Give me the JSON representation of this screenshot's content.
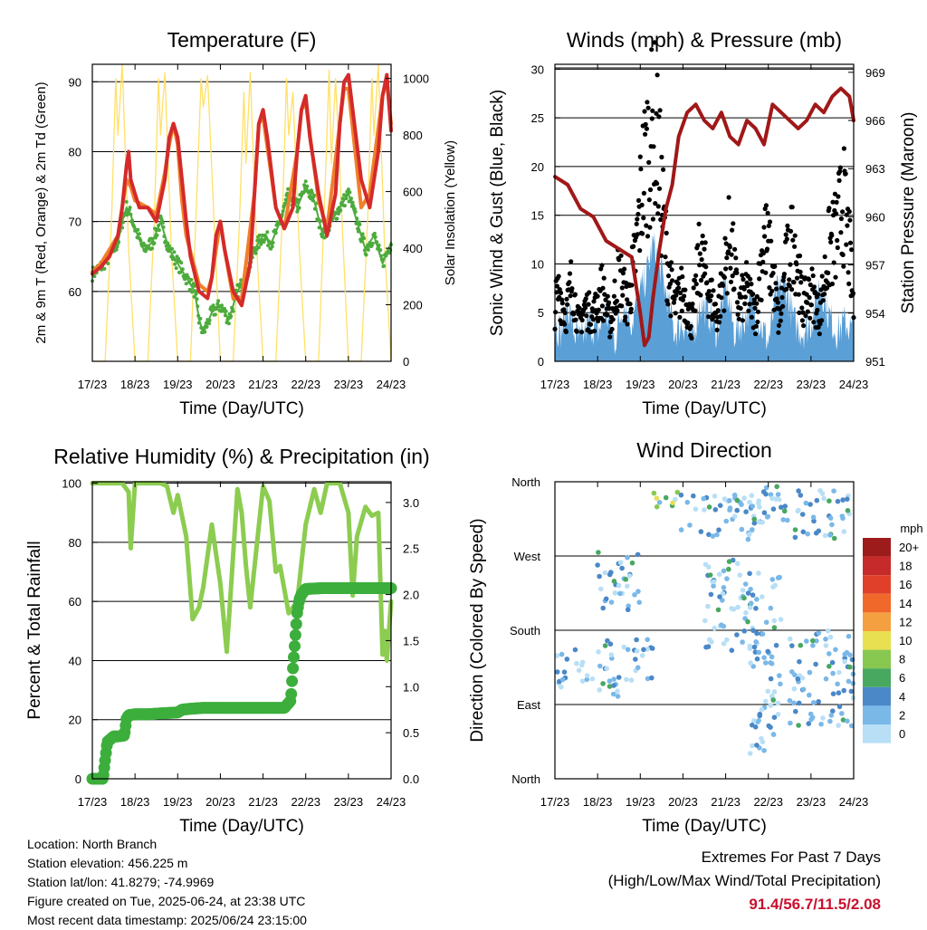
{
  "chart_data": [
    {
      "type": "line",
      "title": "Temperature (F)",
      "xlabel": "Time (Day/UTC)",
      "ylabel": "2m & 9m T (Red, Orange) & 2m Td (Green)",
      "ylabel_right": "Solar Insolation (Yellow)",
      "x_ticks": [
        "17/23",
        "18/23",
        "19/23",
        "20/23",
        "21/23",
        "22/23",
        "23/23",
        "24/23"
      ],
      "y_ticks": [
        "60",
        "70",
        "80",
        "90"
      ],
      "y_ticks_right": [
        "0",
        "200",
        "400",
        "600",
        "800",
        "1000"
      ],
      "ylim": [
        50,
        92.5
      ],
      "ylim_right": [
        0,
        1050
      ],
      "colors": {
        "temp2m": "#d42a2a",
        "temp9m": "#f0802a",
        "dewpoint": "#4cab3c",
        "solar": "#ffe066"
      },
      "series": [
        {
          "x": [
            0,
            0.2,
            0.4,
            0.6,
            0.7,
            0.8,
            0.85,
            0.9,
            1.0,
            1.1,
            1.3,
            1.5,
            1.7,
            1.8,
            1.9,
            2.0,
            2.1,
            2.2,
            2.3,
            2.5,
            2.7,
            2.8,
            2.9,
            3.0,
            3.1,
            3.3,
            3.5,
            3.7,
            3.8,
            3.9,
            4.0,
            4.1,
            4.3,
            4.5,
            4.7,
            4.8,
            4.9,
            5.0,
            5.1,
            5.3,
            5.5,
            5.7,
            5.8,
            5.9,
            6.0,
            6.1,
            6.3,
            6.5,
            6.7,
            6.8,
            6.9,
            7.0
          ],
          "values": [
            62.5,
            63.5,
            65,
            68,
            72,
            78,
            80,
            76,
            74,
            72,
            72,
            70,
            76,
            82,
            84,
            82,
            76,
            70,
            65,
            60,
            59,
            62,
            68,
            70,
            66,
            60,
            58,
            64,
            74,
            84,
            86,
            82,
            72,
            69,
            72,
            80,
            86,
            88,
            82,
            74,
            68,
            74,
            84,
            90,
            91,
            86,
            76,
            72,
            80,
            88,
            91,
            83
          ]
        },
        {
          "x": [
            0,
            0.2,
            0.4,
            0.6,
            0.7,
            0.8,
            0.9,
            1.0,
            1.3,
            1.5,
            1.7,
            1.8,
            1.9,
            2.0,
            2.1,
            2.2,
            2.5,
            2.7,
            2.8,
            3.0,
            3.1,
            3.3,
            3.5,
            3.8,
            3.9,
            4.0,
            4.3,
            4.5,
            4.8,
            4.9,
            5.0,
            5.3,
            5.5,
            5.8,
            5.9,
            6.0,
            6.3,
            6.5,
            6.8,
            6.9,
            7.0
          ],
          "values": [
            62.8,
            64,
            66,
            68,
            72,
            76,
            75,
            73,
            72,
            71,
            77,
            81,
            84,
            81,
            73,
            68,
            61,
            60,
            62,
            70,
            66,
            59,
            59,
            74,
            84,
            85,
            72,
            69,
            80,
            86,
            87,
            73,
            69,
            84,
            89,
            89,
            72,
            74,
            88,
            90,
            84
          ]
        },
        {
          "x": [
            0,
            0.2,
            0.4,
            0.6,
            0.7,
            0.8,
            0.9,
            1.0,
            1.2,
            1.4,
            1.6,
            1.8,
            2.0,
            2.2,
            2.4,
            2.5,
            2.6,
            2.8,
            3.0,
            3.2,
            3.4,
            3.6,
            3.8,
            4.0,
            4.2,
            4.4,
            4.6,
            4.8,
            5.0,
            5.2,
            5.4,
            5.6,
            5.8,
            6.0,
            6.2,
            6.4,
            6.6,
            6.8,
            7.0
          ],
          "values": [
            62.5,
            63.5,
            65,
            67,
            70,
            72,
            71,
            69,
            66,
            67,
            70,
            66,
            64,
            62,
            60,
            56,
            54,
            57,
            58,
            56,
            60,
            62,
            66,
            68,
            67,
            70,
            74,
            72,
            75,
            73,
            68,
            70,
            72,
            74,
            70,
            66,
            68,
            64,
            67
          ]
        },
        {
          "x": [
            0,
            0.3,
            0.45,
            0.55,
            0.6,
            0.7,
            0.85,
            1.0,
            1.3,
            1.45,
            1.55,
            1.6,
            1.7,
            1.85,
            2.0,
            2.3,
            2.45,
            2.55,
            2.6,
            2.7,
            2.85,
            3.0,
            3.3,
            3.45,
            3.55,
            3.6,
            3.7,
            3.85,
            4.0,
            4.3,
            4.45,
            4.55,
            4.6,
            4.7,
            4.85,
            5.0,
            5.3,
            5.45,
            5.55,
            5.6,
            5.7,
            5.85,
            6.0,
            6.3,
            6.45,
            6.55,
            6.6,
            6.7,
            6.85,
            7.0
          ],
          "values": [
            0,
            0,
            500,
            1000,
            800,
            1050,
            400,
            0,
            0,
            500,
            1000,
            800,
            1020,
            400,
            0,
            0,
            600,
            1000,
            900,
            1010,
            500,
            0,
            0,
            500,
            950,
            700,
            1020,
            400,
            0,
            0,
            500,
            1000,
            800,
            950,
            400,
            0,
            0,
            600,
            1030,
            700,
            1000,
            500,
            0,
            0,
            500,
            1000,
            800,
            1050,
            400,
            0
          ]
        }
      ]
    },
    {
      "type": "line",
      "title": "Winds (mph) & Pressure (mb)",
      "xlabel": "Time (Day/UTC)",
      "ylabel": "Sonic Wind & Gust (Blue, Black)",
      "ylabel_right": "Station Pressure (Maroon)",
      "x_ticks": [
        "17/23",
        "18/23",
        "19/23",
        "20/23",
        "21/23",
        "22/23",
        "23/23",
        "24/23"
      ],
      "y_ticks": [
        "0",
        "5",
        "10",
        "15",
        "20",
        "25",
        "30"
      ],
      "y_ticks_right": [
        "951",
        "954",
        "957",
        "960",
        "963",
        "966",
        "969"
      ],
      "ylim": [
        0,
        30.5
      ],
      "ylim_right": [
        951,
        969.5
      ],
      "colors": {
        "wind": "#5a9fd6",
        "gust": "#000000",
        "pressure": "#a01818"
      },
      "series": [
        {
          "x": [
            0,
            0.15,
            0.3,
            0.45,
            0.6,
            0.8,
            1.0,
            1.2,
            1.4,
            1.6,
            1.8,
            2.0,
            2.15,
            2.3,
            2.45,
            2.6,
            2.8,
            3.0,
            3.2,
            3.4,
            3.6,
            3.8,
            4.0,
            4.2,
            4.4,
            4.6,
            4.8,
            5.0,
            5.2,
            5.4,
            5.6,
            5.8,
            6.0,
            6.2,
            6.4,
            6.6,
            6.8,
            7.0
          ],
          "values": [
            4,
            3,
            6,
            3,
            2,
            4,
            3,
            5,
            2,
            6,
            4,
            7,
            9,
            12,
            10,
            7,
            3,
            4,
            2,
            6,
            5,
            3,
            8,
            3,
            4,
            6,
            4,
            2,
            7,
            8,
            4,
            3,
            4,
            8,
            5,
            3,
            4,
            3
          ]
        },
        {
          "x": [
            0,
            0.1,
            0.25,
            0.4,
            0.55,
            0.7,
            0.9,
            1.1,
            1.3,
            1.5,
            1.7,
            1.9,
            2.05,
            2.2,
            2.35,
            2.5,
            2.65,
            2.8,
            3.0,
            3.2,
            3.4,
            3.6,
            3.8,
            3.95,
            4.1,
            4.3,
            4.5,
            4.7,
            4.9,
            5.1,
            5.25,
            5.4,
            5.6,
            5.8,
            6.0,
            6.2,
            6.4,
            6.6,
            6.75,
            6.9,
            7.0
          ],
          "values": [
            6,
            8,
            5,
            9,
            4,
            6,
            5,
            8,
            4,
            10,
            6,
            12,
            20,
            24,
            26,
            18,
            10,
            6,
            8,
            4,
            12,
            8,
            5,
            9,
            14,
            6,
            8,
            5,
            14,
            10,
            4,
            10,
            14,
            6,
            8,
            5,
            12,
            14,
            18,
            12,
            6
          ]
        },
        {
          "x": [
            0,
            0.3,
            0.6,
            0.9,
            1.2,
            1.5,
            1.8,
            2.0,
            2.1,
            2.2,
            2.3,
            2.45,
            2.6,
            2.75,
            2.9,
            3.1,
            3.3,
            3.5,
            3.7,
            3.9,
            4.1,
            4.3,
            4.5,
            4.7,
            4.9,
            5.1,
            5.3,
            5.5,
            5.7,
            5.9,
            6.1,
            6.3,
            6.5,
            6.7,
            6.9,
            7.0
          ],
          "values": [
            962.5,
            962,
            960.5,
            960,
            958.5,
            958,
            957.5,
            954,
            952,
            952.5,
            955,
            958,
            960.5,
            962,
            965,
            966.5,
            967,
            966,
            965.5,
            966.5,
            965,
            964.5,
            966,
            965.5,
            964.5,
            967,
            966.5,
            966,
            965.5,
            966,
            967,
            966.5,
            967.5,
            968,
            967.5,
            966
          ]
        }
      ]
    },
    {
      "type": "line",
      "title": "Relative Humidity (%) & Precipitation (in)",
      "xlabel": "Time (Day/UTC)",
      "ylabel": "Percent & Total Rainfall",
      "x_ticks": [
        "17/23",
        "18/23",
        "19/23",
        "20/23",
        "21/23",
        "22/23",
        "23/23",
        "24/23"
      ],
      "y_ticks": [
        "0",
        "20",
        "40",
        "60",
        "80",
        "100"
      ],
      "y_ticks_right": [
        "0.0",
        "0.5",
        "1.0",
        "1.5",
        "2.0",
        "2.5",
        "3.0"
      ],
      "ylim": [
        0,
        100.5
      ],
      "ylim_right": [
        0,
        3.225
      ],
      "colors": {
        "rh": "#8ccc50",
        "precip": "#3cae3c"
      },
      "series": [
        {
          "x": [
            0,
            0.4,
            0.7,
            0.85,
            0.9,
            1.0,
            1.2,
            1.6,
            1.75,
            1.9,
            2.0,
            2.2,
            2.35,
            2.5,
            2.6,
            2.8,
            3.0,
            3.15,
            3.3,
            3.4,
            3.5,
            3.6,
            3.7,
            4.0,
            4.15,
            4.3,
            4.4,
            4.6,
            4.8,
            5.0,
            5.2,
            5.35,
            5.5,
            5.6,
            5.8,
            6.0,
            6.1,
            6.2,
            6.4,
            6.55,
            6.7,
            6.8,
            6.85,
            6.9,
            7.0
          ],
          "values": [
            100,
            100,
            100,
            97,
            78,
            100,
            100,
            100,
            99,
            90,
            96,
            82,
            54,
            58,
            65,
            86,
            66,
            43,
            76,
            98,
            90,
            72,
            58,
            99,
            94,
            70,
            72,
            56,
            60,
            86,
            98,
            90,
            100,
            100,
            100,
            90,
            62,
            82,
            92,
            89,
            90,
            42,
            50,
            40,
            60
          ]
        },
        {
          "x": [
            0,
            0.1,
            0.2,
            0.25,
            0.35,
            0.5,
            0.6,
            0.75,
            0.8,
            0.85,
            1.0,
            1.3,
            1.6,
            2.0,
            2.1,
            2.3,
            2.6,
            3.0,
            3.3,
            3.6,
            3.9,
            4.2,
            4.5,
            4.65,
            4.7,
            4.8,
            4.85,
            4.9,
            5.0,
            5.4,
            5.8,
            6.2,
            6.6,
            7.0
          ],
          "values": [
            0,
            0,
            0,
            0,
            0.4,
            0.46,
            0.46,
            0.47,
            0.65,
            0.69,
            0.7,
            0.7,
            0.71,
            0.72,
            0.75,
            0.76,
            0.77,
            0.77,
            0.77,
            0.77,
            0.77,
            0.77,
            0.77,
            0.85,
            1.2,
            1.8,
            1.95,
            2.0,
            2.06,
            2.07,
            2.07,
            2.07,
            2.07,
            2.07
          ]
        }
      ]
    },
    {
      "type": "scatter",
      "title": "Wind Direction",
      "xlabel": "Time (Day/UTC)",
      "ylabel": "Direction (Colored By Speed)",
      "x_ticks": [
        "17/23",
        "18/23",
        "19/23",
        "20/23",
        "21/23",
        "22/23",
        "23/23",
        "24/23"
      ],
      "y_ticks": [
        "North",
        "East",
        "South",
        "West",
        "North"
      ],
      "y_range": [
        0,
        360
      ],
      "legend_title": "mph",
      "legend_labels": [
        "20+",
        "18",
        "16",
        "14",
        "12",
        "10",
        "8",
        "6",
        "4",
        "2",
        "0"
      ],
      "legend_colors": [
        "#9e1b1b",
        "#c62a2a",
        "#e0402a",
        "#f0682a",
        "#f5a040",
        "#e8e050",
        "#88c850",
        "#48a860",
        "#4a88c8",
        "#7ab8e8",
        "#b8dff5"
      ],
      "clusters": [
        {
          "x0": 0.0,
          "x1": 0.9,
          "d0": 110,
          "d1": 160
        },
        {
          "x0": 1.0,
          "x1": 2.3,
          "d0": 100,
          "d1": 170
        },
        {
          "x0": 2.1,
          "x1": 2.9,
          "d0": 325,
          "d1": 350
        },
        {
          "x0": 2.8,
          "x1": 4.8,
          "d0": 290,
          "d1": 345
        },
        {
          "x0": 4.6,
          "x1": 7.0,
          "d0": 290,
          "d1": 355
        },
        {
          "x0": 3.5,
          "x1": 4.6,
          "d0": 150,
          "d1": 270
        },
        {
          "x0": 4.5,
          "x1": 5.3,
          "d0": 30,
          "d1": 250
        },
        {
          "x0": 5.5,
          "x1": 7.0,
          "d0": 60,
          "d1": 180
        },
        {
          "x0": 1.0,
          "x1": 2.0,
          "d0": 200,
          "d1": 280
        }
      ]
    }
  ],
  "info": {
    "location": "Location: North Branch",
    "elevation": "Station elevation: 456.225 m",
    "latlon": "Station lat/lon: 41.8279; -74.9969",
    "created": "Figure created on Tue, 2025-06-24, at 23:38 UTC",
    "recent": "Most recent data timestamp: 2025/06/24 23:15:00"
  },
  "extremes": {
    "line1": "Extremes For Past 7 Days",
    "line2": "(High/Low/Max Wind/Total Precipitation)",
    "values": "91.4/56.7/11.5/2.08"
  }
}
